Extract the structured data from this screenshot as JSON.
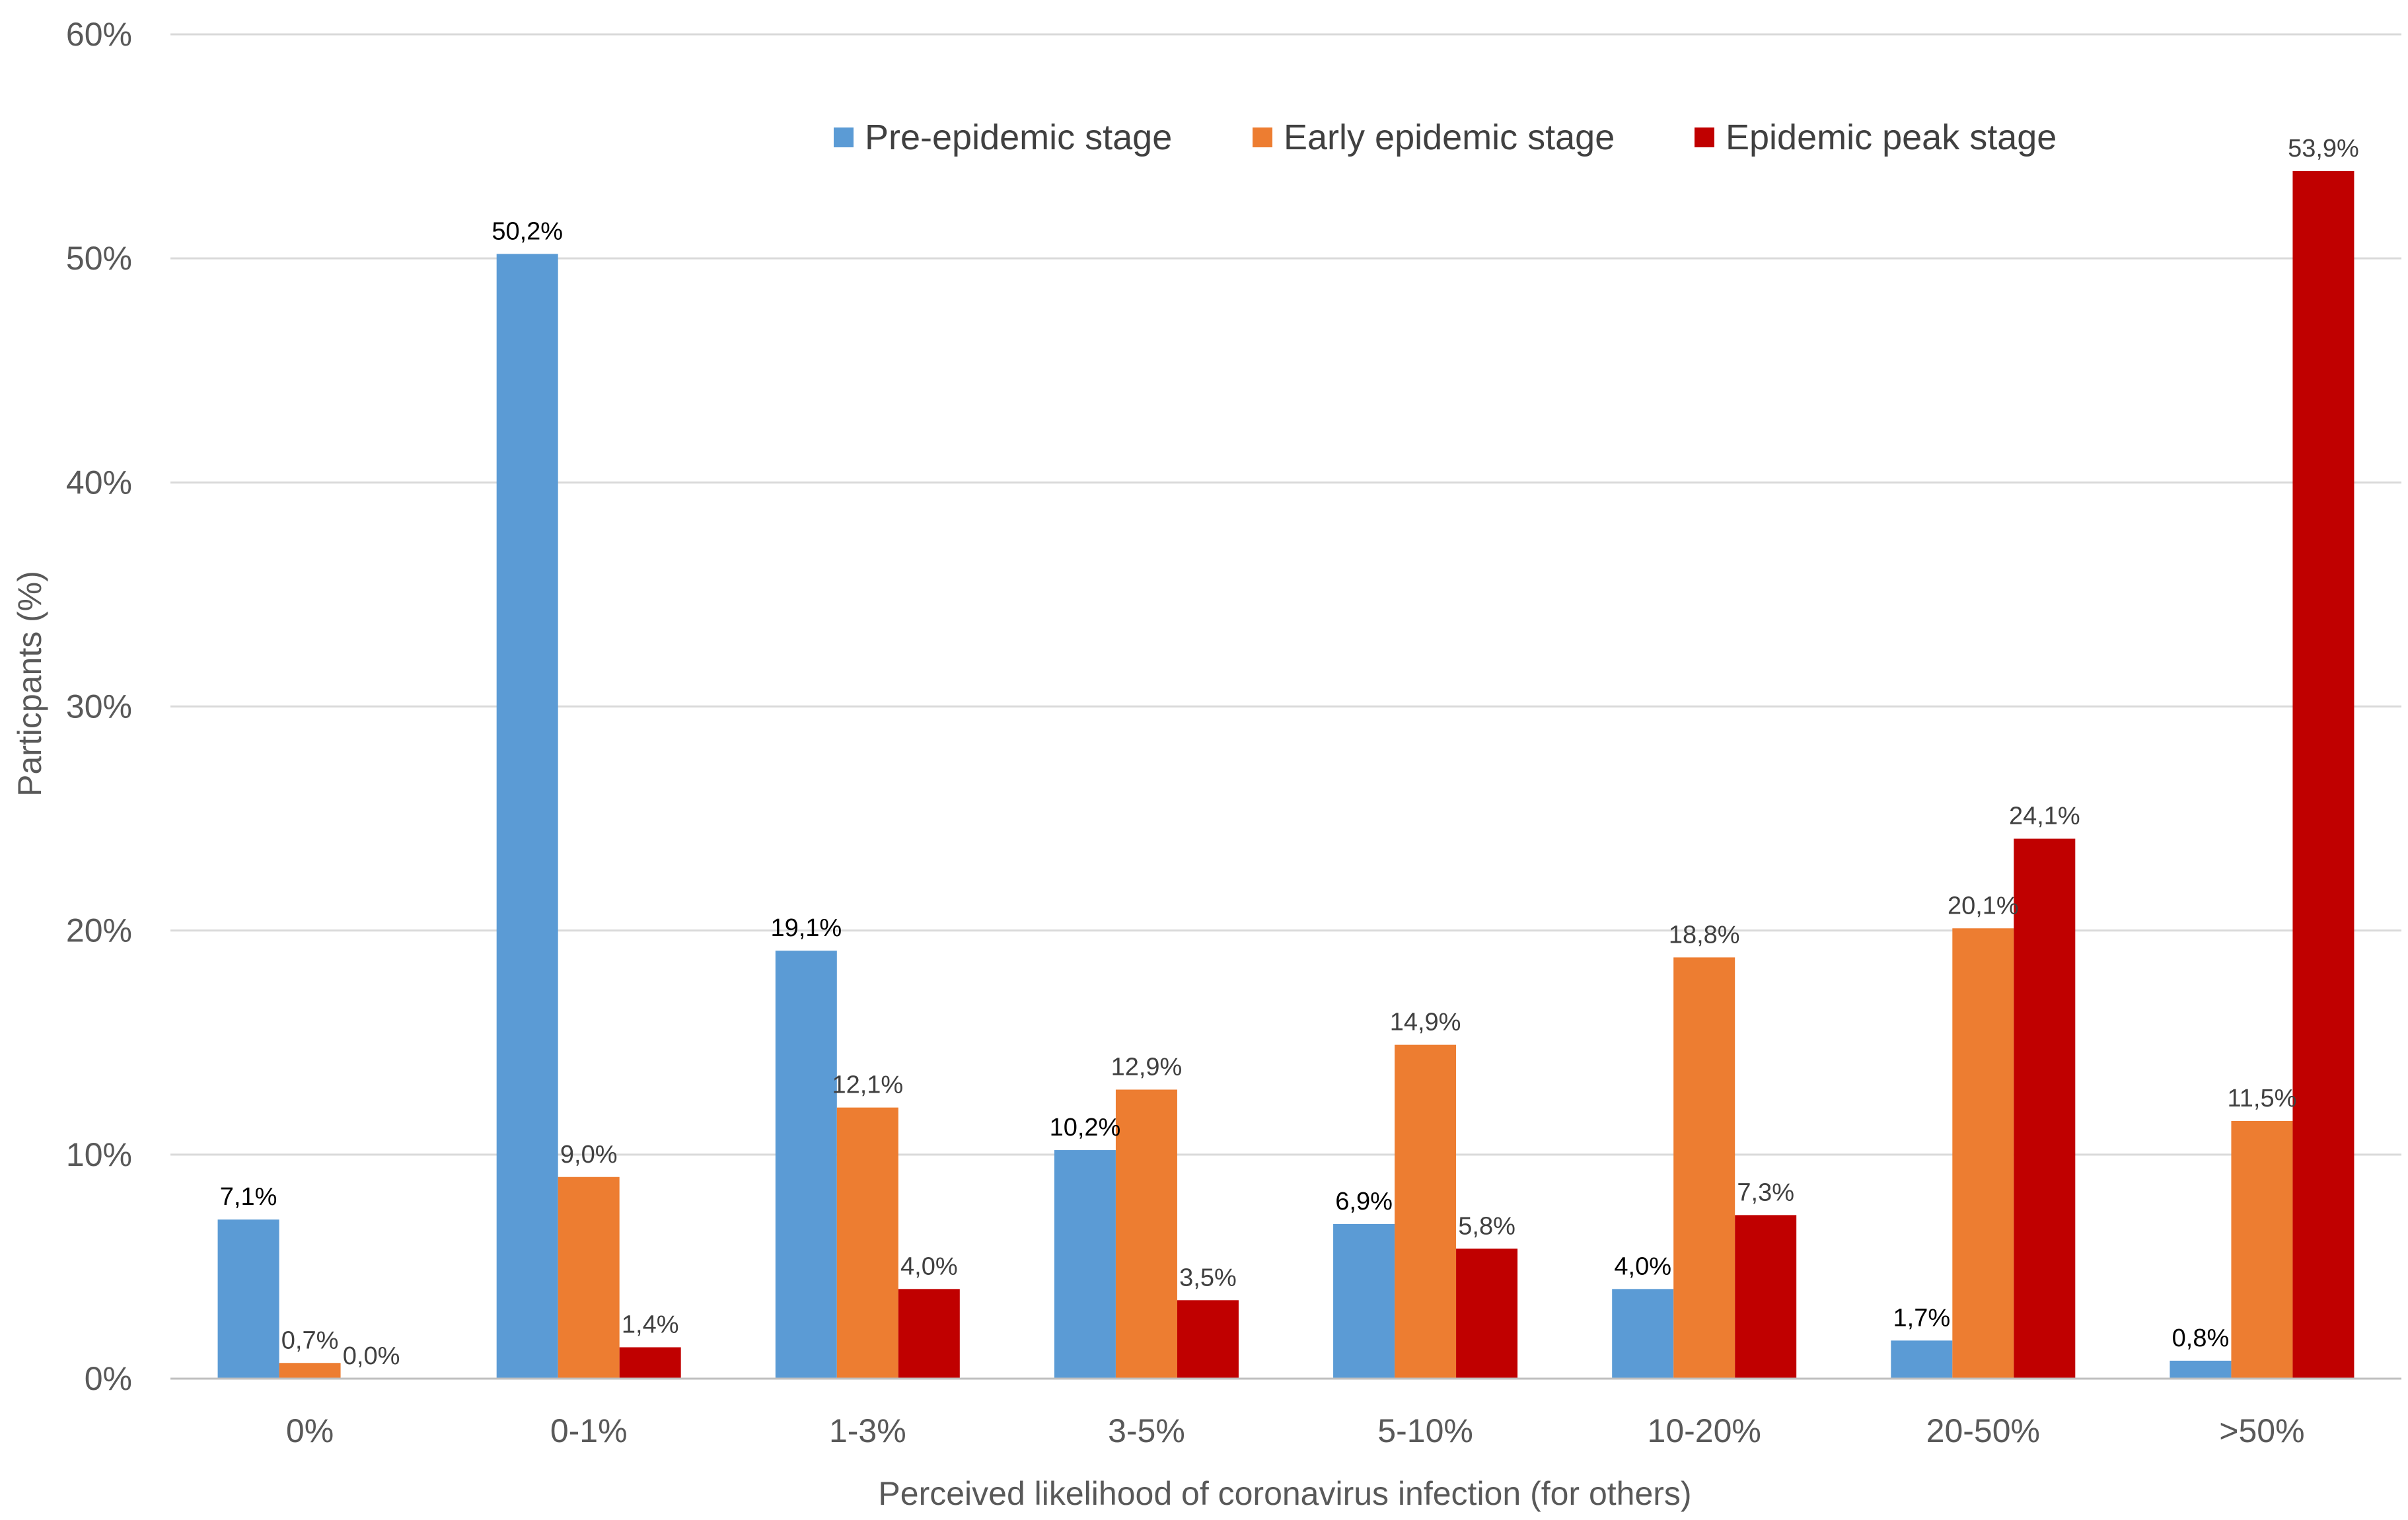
{
  "chart_data": {
    "type": "bar",
    "title": "",
    "xlabel": "Perceived likelihood of coronavirus infection (for others)",
    "ylabel": "Particpants (%)",
    "ylim": [
      0,
      60
    ],
    "yticks": [
      0,
      10,
      20,
      30,
      40,
      50,
      60
    ],
    "ytick_labels": [
      "0%",
      "10%",
      "20%",
      "30%",
      "40%",
      "50%",
      "60%"
    ],
    "grid": true,
    "legend_position": "top-right",
    "categories": [
      "0%",
      "0-1%",
      "1-3%",
      "3-5%",
      "5-10%",
      "10-20%",
      "20-50%",
      ">50%"
    ],
    "series": [
      {
        "name": "Pre-epidemic stage",
        "color": "#5B9BD5",
        "label_color": "#000000",
        "values": [
          7.1,
          50.2,
          19.1,
          10.2,
          6.9,
          4.0,
          1.7,
          0.8
        ],
        "labels": [
          "7,1%",
          "50,2%",
          "19,1%",
          "10,2%",
          "6,9%",
          "4,0%",
          "1,7%",
          "0,8%"
        ]
      },
      {
        "name": "Early epidemic stage",
        "color": "#ED7D31",
        "label_color": "#404040",
        "values": [
          0.7,
          9.0,
          12.1,
          12.9,
          14.9,
          18.8,
          20.1,
          11.5
        ],
        "labels": [
          "0,7%",
          "9,0%",
          "12,1%",
          "12,9%",
          "14,9%",
          "18,8%",
          "20,1%",
          "11,5%"
        ]
      },
      {
        "name": "Epidemic peak stage",
        "color": "#C00000",
        "label_color": "#404040",
        "values": [
          0.0,
          1.4,
          4.0,
          3.5,
          5.8,
          7.3,
          24.1,
          53.9
        ],
        "labels": [
          "0,0%",
          "1,4%",
          "4,0%",
          "3,5%",
          "5,8%",
          "7,3%",
          "24,1%",
          "53,9%"
        ]
      }
    ]
  },
  "colors": {
    "gridline": "#D9D9D9",
    "axis_line": "#BFBFBF",
    "text": "#595959"
  }
}
